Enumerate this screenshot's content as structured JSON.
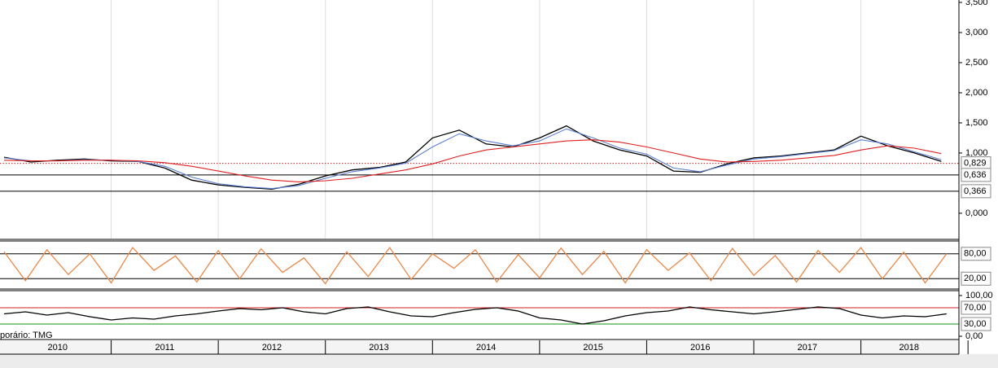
{
  "chart_data": [
    {
      "type": "line",
      "x": [
        2010.0,
        2010.25,
        2010.5,
        2010.75,
        2011.0,
        2011.25,
        2011.5,
        2011.75,
        2012.0,
        2012.25,
        2012.5,
        2012.75,
        2013.0,
        2013.25,
        2013.5,
        2013.75,
        2014.0,
        2014.25,
        2014.5,
        2014.75,
        2015.0,
        2015.25,
        2015.5,
        2015.75,
        2016.0,
        2016.25,
        2016.5,
        2016.75,
        2017.0,
        2017.25,
        2017.5,
        2017.75,
        2018.0,
        2018.25,
        2018.5,
        2018.75
      ],
      "series": [
        {
          "color": "#000000",
          "values": [
            0.93,
            0.85,
            0.88,
            0.9,
            0.87,
            0.86,
            0.75,
            0.55,
            0.47,
            0.43,
            0.4,
            0.48,
            0.62,
            0.72,
            0.76,
            0.85,
            1.25,
            1.38,
            1.15,
            1.1,
            1.25,
            1.45,
            1.2,
            1.05,
            0.95,
            0.7,
            0.68,
            0.82,
            0.92,
            0.95,
            1.0,
            1.05,
            1.28,
            1.12,
            1.0,
            0.86
          ]
        },
        {
          "color": "#5b7fd0",
          "values": [
            0.92,
            0.87,
            0.87,
            0.89,
            0.88,
            0.86,
            0.78,
            0.6,
            0.49,
            0.44,
            0.41,
            0.46,
            0.58,
            0.69,
            0.75,
            0.83,
            1.1,
            1.32,
            1.2,
            1.12,
            1.2,
            1.4,
            1.25,
            1.08,
            0.98,
            0.75,
            0.69,
            0.8,
            0.9,
            0.94,
            0.99,
            1.04,
            1.22,
            1.15,
            1.02,
            0.89
          ]
        },
        {
          "color": "#e02020",
          "values": [
            0.88,
            0.87,
            0.87,
            0.88,
            0.88,
            0.87,
            0.84,
            0.78,
            0.7,
            0.62,
            0.55,
            0.52,
            0.54,
            0.58,
            0.65,
            0.72,
            0.82,
            0.95,
            1.05,
            1.1,
            1.15,
            1.2,
            1.22,
            1.18,
            1.1,
            1.0,
            0.9,
            0.85,
            0.86,
            0.88,
            0.92,
            0.96,
            1.05,
            1.12,
            1.08,
            0.99
          ]
        }
      ],
      "xlim": [
        2010.0,
        2018.9
      ],
      "ylim": [
        -0.42,
        3.54
      ],
      "yticks": [
        {
          "value": 0,
          "label": "0,000"
        },
        {
          "value": 1,
          "label": "1,000"
        },
        {
          "value": 1.5,
          "label": "1,500"
        },
        {
          "value": 2,
          "label": "2,000"
        },
        {
          "value": 2.5,
          "label": "2,500"
        },
        {
          "value": 3,
          "label": "3,000"
        },
        {
          "value": 3.5,
          "label": "3,500"
        }
      ],
      "reference_lines": [
        {
          "value": 0.829,
          "label": "0,829",
          "color": "#c02020",
          "dashed": true
        },
        {
          "value": 0.636,
          "label": "0,636",
          "color": "#000000",
          "dashed": false
        },
        {
          "value": 0.366,
          "label": "0,366",
          "color": "#000000",
          "dashed": false
        }
      ],
      "grid": true
    },
    {
      "type": "line",
      "x": [
        2010.0,
        2010.2,
        2010.4,
        2010.6,
        2010.8,
        2011.0,
        2011.2,
        2011.4,
        2011.6,
        2011.8,
        2012.0,
        2012.2,
        2012.4,
        2012.6,
        2012.8,
        2013.0,
        2013.2,
        2013.4,
        2013.6,
        2013.8,
        2014.0,
        2014.2,
        2014.4,
        2014.6,
        2014.8,
        2015.0,
        2015.2,
        2015.4,
        2015.6,
        2015.8,
        2016.0,
        2016.2,
        2016.4,
        2016.6,
        2016.8,
        2017.0,
        2017.2,
        2017.4,
        2017.6,
        2017.8,
        2018.0,
        2018.2,
        2018.4,
        2018.6,
        2018.8
      ],
      "series": [
        {
          "color": "#e8894a",
          "values": [
            85,
            15,
            90,
            30,
            80,
            10,
            95,
            40,
            75,
            12,
            88,
            20,
            92,
            35,
            70,
            8,
            85,
            25,
            95,
            18,
            80,
            45,
            90,
            12,
            78,
            22,
            94,
            30,
            86,
            10,
            90,
            40,
            82,
            15,
            93,
            28,
            76,
            12,
            88,
            35,
            95,
            20,
            84,
            10,
            80
          ]
        }
      ],
      "xlim": [
        2010.0,
        2018.9
      ],
      "ylim": [
        -5,
        109
      ],
      "reference_lines": [
        {
          "value": 80,
          "label": "80,00",
          "color": "#000000",
          "dashed": false
        },
        {
          "value": 20,
          "label": "20,00",
          "color": "#000000",
          "dashed": false
        }
      ]
    },
    {
      "type": "line",
      "x": [
        2010.0,
        2010.2,
        2010.4,
        2010.6,
        2010.8,
        2011.0,
        2011.2,
        2011.4,
        2011.6,
        2011.8,
        2012.0,
        2012.2,
        2012.4,
        2012.6,
        2012.8,
        2013.0,
        2013.2,
        2013.4,
        2013.6,
        2013.8,
        2014.0,
        2014.2,
        2014.4,
        2014.6,
        2014.8,
        2015.0,
        2015.2,
        2015.4,
        2015.6,
        2015.8,
        2016.0,
        2016.2,
        2016.4,
        2016.6,
        2016.8,
        2017.0,
        2017.2,
        2017.4,
        2017.6,
        2017.8,
        2018.0,
        2018.2,
        2018.4,
        2018.6,
        2018.8
      ],
      "series": [
        {
          "color": "#000000",
          "values": [
            55,
            60,
            52,
            58,
            48,
            40,
            45,
            42,
            50,
            55,
            62,
            68,
            65,
            70,
            60,
            55,
            68,
            72,
            60,
            50,
            48,
            58,
            66,
            70,
            62,
            45,
            40,
            30,
            38,
            50,
            58,
            62,
            72,
            65,
            60,
            55,
            60,
            66,
            72,
            68,
            52,
            45,
            50,
            48,
            55
          ]
        }
      ],
      "xlim": [
        2010.0,
        2018.9
      ],
      "ylim": [
        -6,
        112
      ],
      "yticks": [
        {
          "value": 100,
          "label": "100,00"
        },
        {
          "value": 0,
          "label": "0,00"
        }
      ],
      "reference_lines": [
        {
          "value": 70,
          "label": "70,00",
          "color": "#d02020",
          "dashed": false
        },
        {
          "value": 30,
          "label": "30,00",
          "color": "#109010",
          "dashed": false
        }
      ],
      "caption": "porário: TMG"
    }
  ],
  "time_axis": {
    "labels": [
      "2010",
      "2011",
      "2012",
      "2013",
      "2014",
      "2015",
      "2016",
      "2017",
      "2018"
    ],
    "start": 2010,
    "xlim": [
      2010.0,
      2018.9
    ]
  }
}
